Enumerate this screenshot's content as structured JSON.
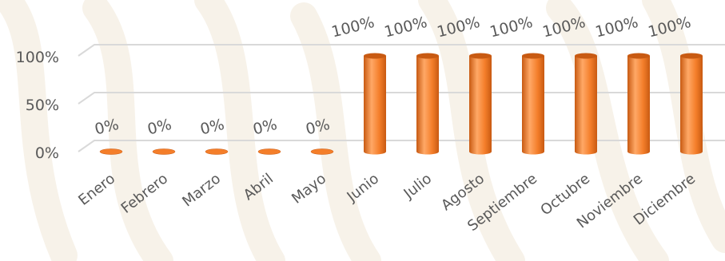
{
  "chart_data": {
    "type": "bar",
    "categories": [
      "Enero",
      "Febrero",
      "Marzo",
      "Abril",
      "Mayo",
      "Junio",
      "Julio",
      "Agosto",
      "Septiembre",
      "Octubre",
      "Noviembre",
      "Diciembre"
    ],
    "values": [
      0,
      0,
      0,
      0,
      0,
      100,
      100,
      100,
      100,
      100,
      100,
      100
    ],
    "data_labels": [
      "0%",
      "0%",
      "0%",
      "0%",
      "0%",
      "100%",
      "100%",
      "100%",
      "100%",
      "100%",
      "100%",
      "100%"
    ],
    "y_ticks": [
      {
        "value": 0,
        "label": "0%"
      },
      {
        "value": 50,
        "label": "50%"
      },
      {
        "value": 100,
        "label": "100%"
      }
    ],
    "ylim": [
      0,
      100
    ],
    "title": "",
    "xlabel": "",
    "ylabel": "",
    "grid": true,
    "legend": "none",
    "bar_shape": "cylinder",
    "colors": {
      "bar": "#F47E2A",
      "bar_dark": "#C85A12",
      "bar_light": "#FFA866",
      "grid": "#D9D9D9",
      "text": "#595959",
      "watermark": "#F5EFE4"
    }
  }
}
